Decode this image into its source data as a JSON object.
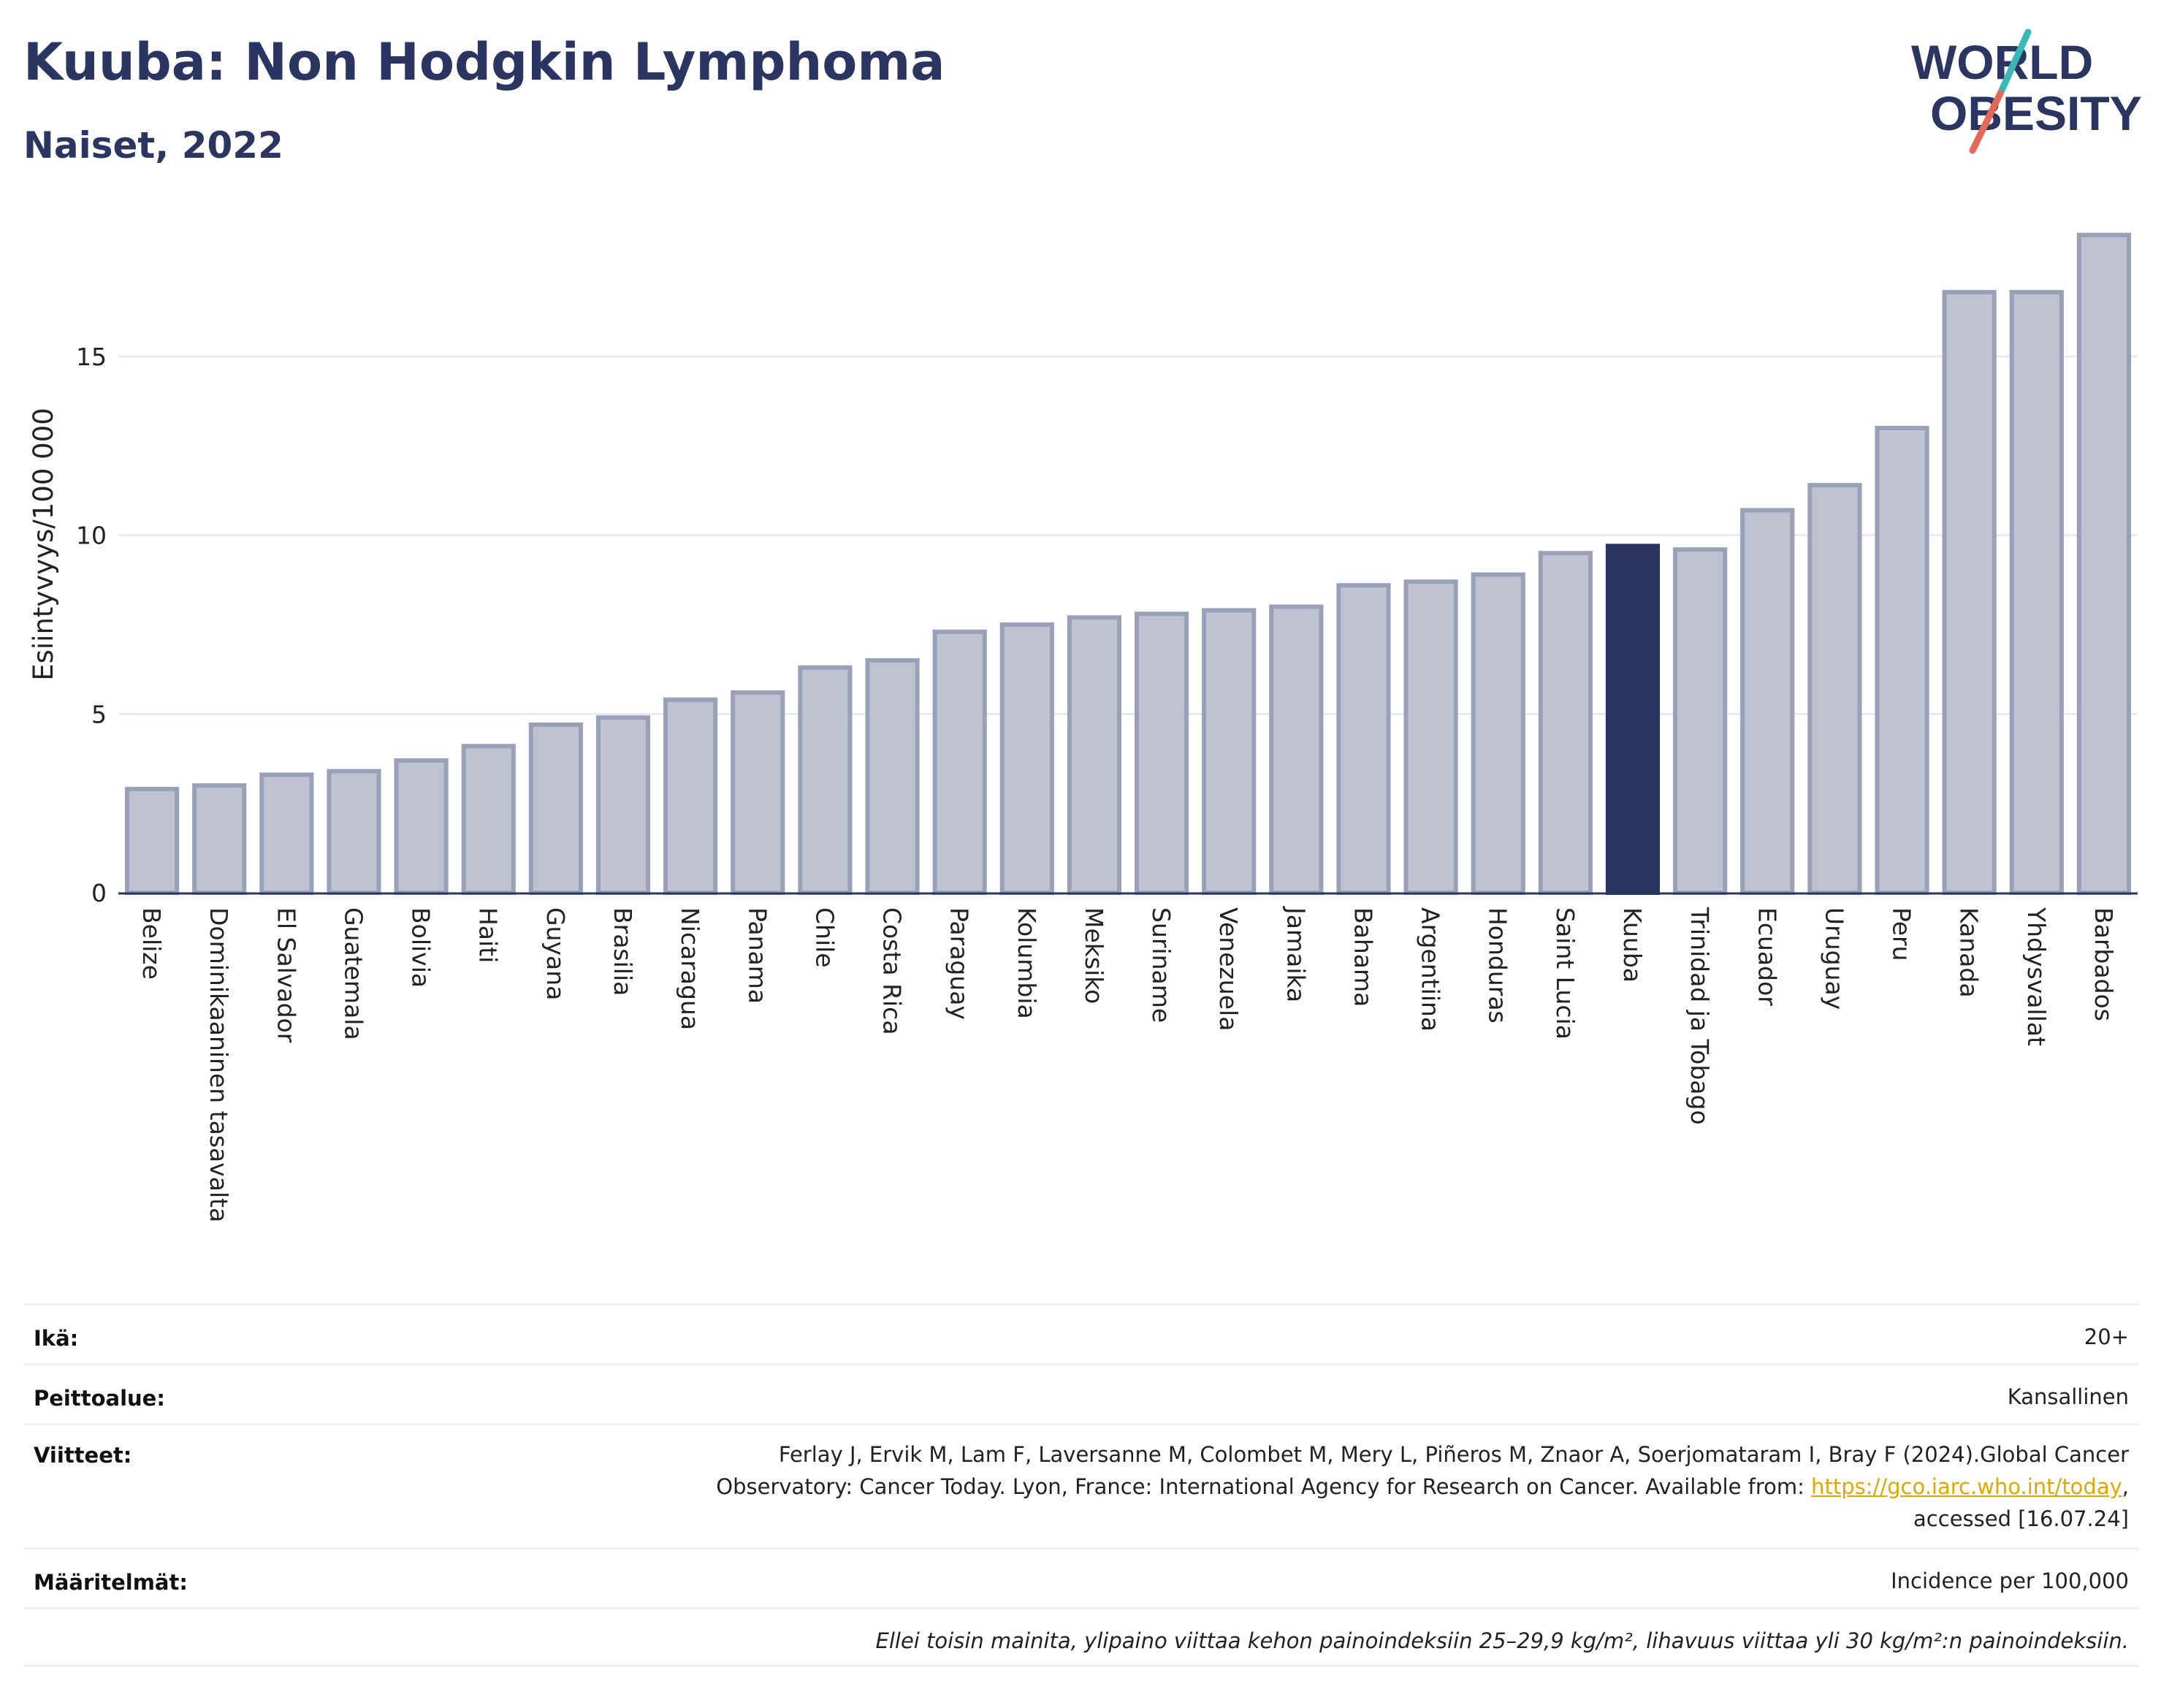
{
  "header": {
    "title": "Kuuba: Non Hodgkin Lymphoma",
    "subtitle": "Naiset, 2022"
  },
  "logo": {
    "line1": "WORLD",
    "line2": "OBESITY",
    "colors": {
      "text": "#2a3561",
      "slash_teal": "#3bb8b5",
      "slash_red": "#e4675a"
    }
  },
  "chart_data": {
    "type": "bar",
    "ylabel": "Esiintyvyys/100 000",
    "xlabel": "",
    "ylim": [
      0,
      19
    ],
    "yticks": [
      0,
      5,
      10,
      15
    ],
    "grid": true,
    "highlight": "Kuuba",
    "colors": {
      "bar": "#bfc2d0",
      "bar_edge": "#9aa0b8",
      "highlight": "#2a3561",
      "grid": "#e8eaf1"
    },
    "categories": [
      "Belize",
      "Dominikaaninen tasavalta",
      "El Salvador",
      "Guatemala",
      "Bolivia",
      "Haiti",
      "Guyana",
      "Brasilia",
      "Nicaragua",
      "Panama",
      "Chile",
      "Costa Rica",
      "Paraguay",
      "Kolumbia",
      "Meksiko",
      "Suriname",
      "Venezuela",
      "Jamaika",
      "Bahama",
      "Argentiina",
      "Honduras",
      "Saint Lucia",
      "Kuuba",
      "Trinidad ja Tobago",
      "Ecuador",
      "Uruguay",
      "Peru",
      "Kanada",
      "Yhdysvallat",
      "Barbados"
    ],
    "values": [
      2.9,
      3.0,
      3.3,
      3.4,
      3.7,
      4.1,
      4.7,
      4.9,
      5.4,
      5.6,
      6.3,
      6.5,
      7.3,
      7.5,
      7.7,
      7.8,
      7.9,
      8.0,
      8.6,
      8.7,
      8.9,
      9.5,
      9.7,
      9.6,
      10.7,
      11.4,
      13.0,
      16.8,
      16.8,
      18.4
    ]
  },
  "info": {
    "age_label": "Ikä:",
    "age_value": "20+",
    "coverage_label": "Peittoalue:",
    "coverage_value": "Kansallinen",
    "refs_label": "Viitteet:",
    "refs_line1": "Ferlay J, Ervik M, Lam F, Laversanne M, Colombet M, Mery L, Piñeros M, Znaor A, Soerjomataram I, Bray F (2024).Global Cancer",
    "refs_line2_pre": "Observatory: Cancer Today. Lyon, France: International Agency for Research on Cancer. Available from: ",
    "refs_link": "https://gco.iarc.who.int/today",
    "refs_line2_post": ",",
    "refs_line3": "accessed [16.07.24]",
    "defs_label": "Määritelmät:",
    "defs_value": "Incidence per 100,000",
    "note": "Ellei toisin mainita, ylipaino viittaa kehon painoindeksiin 25–29,9 kg/m², lihavuus viittaa yli 30 kg/m²:n painoindeksiin."
  }
}
